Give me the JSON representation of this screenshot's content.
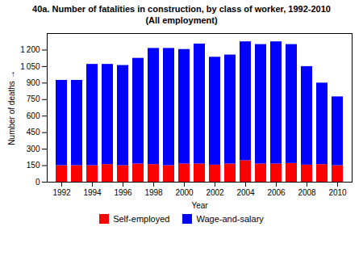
{
  "chart_data": {
    "type": "bar",
    "stacked": true,
    "title": "40a. Number of fatalities in construction, by class of worker, 1992-2010",
    "subtitle": "(All employment)",
    "xlabel": "Year",
    "ylabel": "Number of deaths",
    "categories": [
      "1992",
      null,
      "1994",
      null,
      "1996",
      null,
      "1998",
      null,
      "2000",
      null,
      "2002",
      null,
      "2004",
      null,
      "2006",
      null,
      "2008",
      null,
      "2010"
    ],
    "series": [
      {
        "name": "Self-employed",
        "color": "#FF0000",
        "values": [
          150,
          150,
          150,
          160,
          150,
          165,
          160,
          150,
          165,
          165,
          155,
          165,
          195,
          165,
          165,
          170,
          155,
          160,
          150
        ]
      },
      {
        "name": "Wage-and-salary",
        "color": "#0000FF",
        "values": [
          775,
          775,
          920,
          910,
          910,
          960,
          1055,
          1065,
          1040,
          1090,
          980,
          990,
          1080,
          1085,
          1110,
          1080,
          895,
          740,
          625
        ]
      }
    ],
    "ylim": [
      0,
      1350
    ],
    "yticks": [
      0,
      150,
      300,
      450,
      600,
      750,
      900,
      {
        "value": 1050,
        "label": "1 050"
      },
      {
        "value": 1200,
        "label": "1 200"
      }
    ],
    "grid": false,
    "legend": "bottom"
  }
}
